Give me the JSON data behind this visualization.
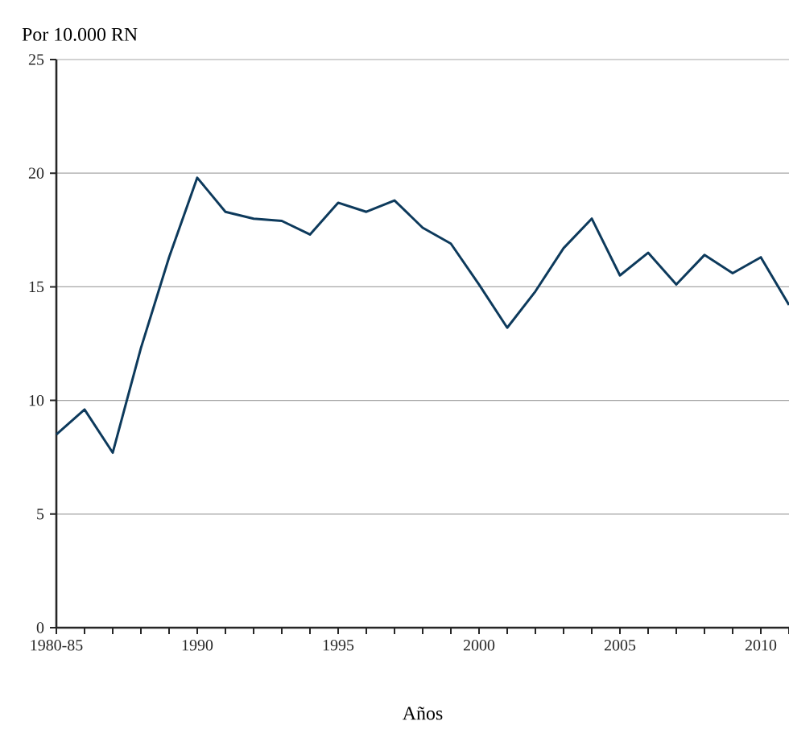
{
  "chart_data": {
    "type": "line",
    "ylabel": "Por 10.000 RN",
    "xlabel": "Años",
    "x": [
      1985,
      1986,
      1987,
      1988,
      1989,
      1990,
      1991,
      1992,
      1993,
      1994,
      1995,
      1996,
      1997,
      1998,
      1999,
      2000,
      2001,
      2002,
      2003,
      2004,
      2005,
      2006,
      2007,
      2008,
      2009,
      2010,
      2011
    ],
    "series": [
      {
        "color": "#0d3a5c",
        "values": [
          8.5,
          9.6,
          7.7,
          12.3,
          16.3,
          19.8,
          18.3,
          18.0,
          17.9,
          17.3,
          18.7,
          18.3,
          18.8,
          17.6,
          16.9,
          15.1,
          13.2,
          14.8,
          16.7,
          18.0,
          15.5,
          16.5,
          15.1,
          16.4,
          15.6,
          16.3,
          14.2
        ]
      }
    ],
    "xlim": [
      1985,
      2011
    ],
    "xticks": [
      {
        "value": 1985,
        "label": "1980-85"
      },
      {
        "value": 1986,
        "label": null
      },
      {
        "value": 1987,
        "label": null
      },
      {
        "value": 1988,
        "label": null
      },
      {
        "value": 1989,
        "label": null
      },
      1990,
      {
        "value": 1991,
        "label": null
      },
      {
        "value": 1992,
        "label": null
      },
      {
        "value": 1993,
        "label": null
      },
      {
        "value": 1994,
        "label": null
      },
      1995,
      {
        "value": 1996,
        "label": null
      },
      {
        "value": 1997,
        "label": null
      },
      {
        "value": 1998,
        "label": null
      },
      {
        "value": 1999,
        "label": null
      },
      2000,
      {
        "value": 2001,
        "label": null
      },
      {
        "value": 2002,
        "label": null
      },
      {
        "value": 2003,
        "label": null
      },
      {
        "value": 2004,
        "label": null
      },
      2005,
      {
        "value": 2006,
        "label": null
      },
      {
        "value": 2007,
        "label": null
      },
      {
        "value": 2008,
        "label": null
      },
      {
        "value": 2009,
        "label": null
      },
      2010,
      {
        "value": 2011,
        "label": null
      }
    ],
    "ylim": [
      0,
      25
    ],
    "yticks": [
      0,
      5,
      10,
      15,
      20,
      25
    ],
    "grid": "y",
    "marker": "none",
    "line_style": "solid"
  }
}
